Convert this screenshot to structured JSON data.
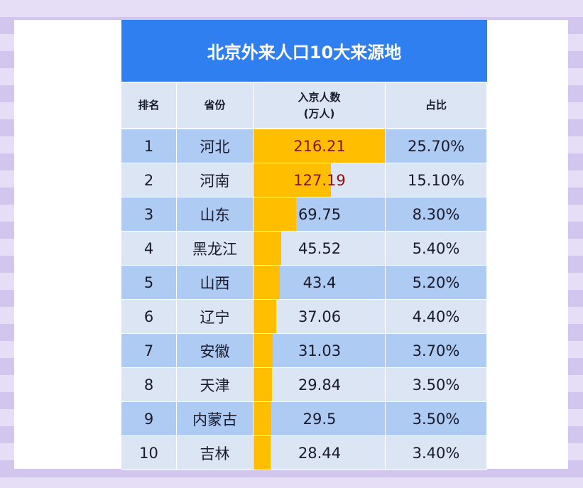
{
  "header": {
    "title": "北京外来人口10大来源地"
  },
  "table": {
    "columns": [
      "排名",
      "省份",
      "入京人数\n(万人)",
      "占比"
    ],
    "rows": [
      {
        "rank": 1,
        "province": "河北",
        "value": 216.21,
        "share": "25.70%"
      },
      {
        "rank": 2,
        "province": "河南",
        "value": 127.19,
        "share": "15.10%"
      },
      {
        "rank": 3,
        "province": "山东",
        "value": 69.75,
        "share": "8.30%"
      },
      {
        "rank": 4,
        "province": "黑龙江",
        "value": 45.52,
        "share": "5.40%"
      },
      {
        "rank": 5,
        "province": "山西",
        "value": 43.4,
        "share": "5.20%"
      },
      {
        "rank": 6,
        "province": "辽宁",
        "value": 37.06,
        "share": "4.40%"
      },
      {
        "rank": 7,
        "province": "安徽",
        "value": 31.03,
        "share": "3.70%"
      },
      {
        "rank": 8,
        "province": "天津",
        "value": 29.84,
        "share": "3.50%"
      },
      {
        "rank": 9,
        "province": "内蒙古",
        "value": 29.5,
        "share": "3.50%"
      },
      {
        "rank": 10,
        "province": "吉林",
        "value": 28.44,
        "share": "3.40%"
      }
    ]
  }
}
